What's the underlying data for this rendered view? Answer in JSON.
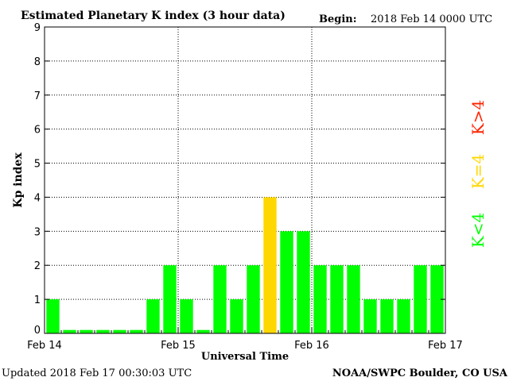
{
  "chart_data": {
    "type": "bar",
    "title": "Estimated Planetary K index (3 hour data)",
    "begin_label": "Begin:",
    "begin_value": "2018 Feb 14 0000 UTC",
    "xlabel": "Universal Time",
    "ylabel": "Kp index",
    "ylim": [
      0,
      9
    ],
    "yticks": [
      0,
      1,
      2,
      3,
      4,
      5,
      6,
      7,
      8,
      9
    ],
    "xtick_labels": [
      "Feb 14",
      "Feb 15",
      "Feb 16",
      "Feb 17"
    ],
    "grid": true,
    "values": [
      1,
      0,
      0,
      0,
      0,
      0,
      1,
      2,
      1,
      0,
      2,
      1,
      2,
      4,
      3,
      3,
      2,
      2,
      2,
      1,
      1,
      1,
      2,
      2
    ],
    "colors": {
      "below": "#00ff00",
      "equal": "#ffd700",
      "above": "#ff2200"
    },
    "legend": {
      "placement": "right",
      "below": "K<4",
      "equal": "K=4",
      "above": "K>4"
    },
    "updated": "Updated 2018 Feb 17 00:30:03 UTC",
    "source": "NOAA/SWPC Boulder, CO USA"
  }
}
